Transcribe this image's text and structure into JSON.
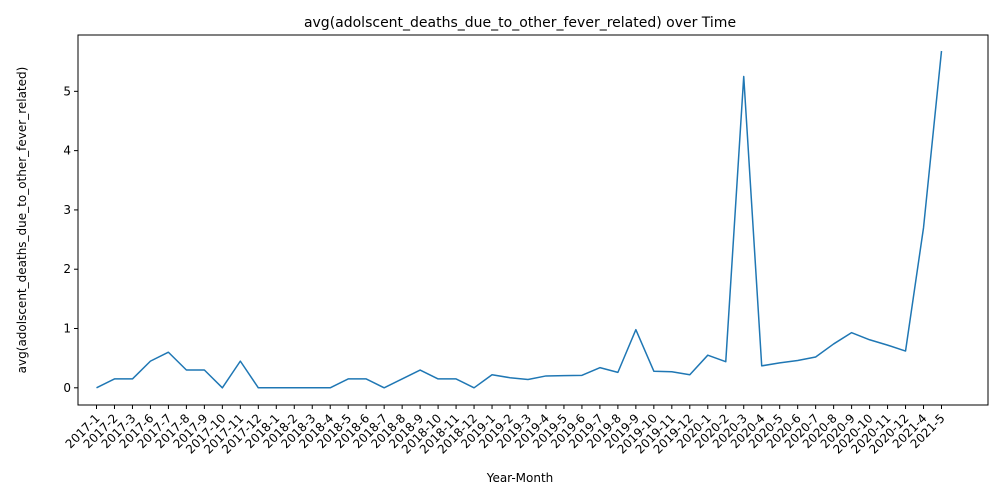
{
  "chart_data": {
    "type": "line",
    "title": "avg(adolscent_deaths_due_to_other_fever_related) over Time",
    "xlabel": "Year-Month",
    "ylabel": "avg(adolscent_deaths_due_to_other_fever_related)",
    "ylim": [
      -0.29,
      5.95
    ],
    "yticks": [
      0,
      1,
      2,
      3,
      4,
      5
    ],
    "grid": false,
    "legend": "none",
    "line_color": "#1f77b4",
    "x": [
      "2017-1",
      "2017-2",
      "2017-3",
      "2017-6",
      "2017-7",
      "2017-8",
      "2017-9",
      "2017-10",
      "2017-11",
      "2017-12",
      "2018-1",
      "2018-2",
      "2018-3",
      "2018-4",
      "2018-5",
      "2018-6",
      "2018-7",
      "2018-8",
      "2018-9",
      "2018-10",
      "2018-11",
      "2018-12",
      "2019-1",
      "2019-2",
      "2019-3",
      "2019-4",
      "2019-5",
      "2019-6",
      "2019-7",
      "2019-8",
      "2019-9",
      "2019-10",
      "2019-11",
      "2019-12",
      "2020-1",
      "2020-2",
      "2020-3",
      "2020-4",
      "2020-5",
      "2020-6",
      "2020-7",
      "2020-8",
      "2020-9",
      "2020-10",
      "2020-11",
      "2020-12",
      "2021-4",
      "2021-5"
    ],
    "series": [
      {
        "values": [
          0.0,
          0.15,
          0.15,
          0.45,
          0.6,
          0.3,
          0.3,
          0.0,
          0.45,
          0.0,
          0.0,
          0.0,
          0.0,
          0.0,
          0.15,
          0.15,
          0.0,
          0.15,
          0.3,
          0.15,
          0.15,
          0.0,
          0.22,
          0.17,
          0.14,
          0.2,
          0.205,
          0.21,
          0.34,
          0.26,
          0.98,
          0.28,
          0.27,
          0.22,
          0.55,
          0.44,
          5.25,
          0.37,
          0.42,
          0.46,
          0.52,
          0.74,
          0.93,
          0.81,
          0.72,
          0.62,
          2.7,
          5.68
        ]
      }
    ]
  }
}
